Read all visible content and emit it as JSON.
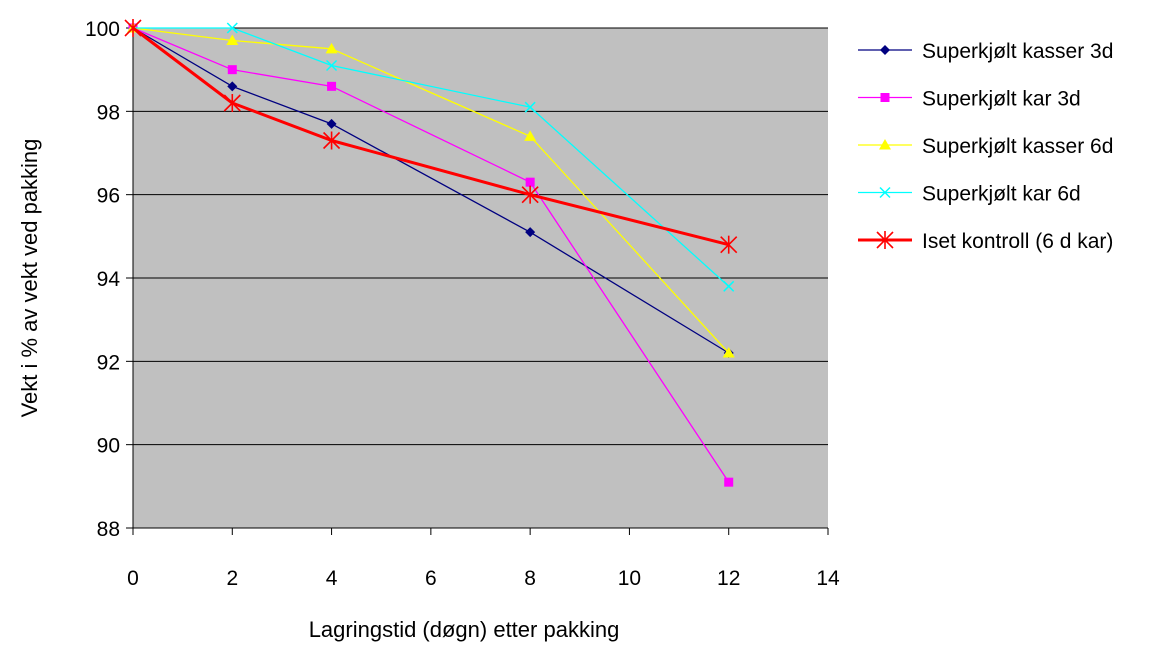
{
  "chart_data": {
    "type": "line",
    "title": "",
    "xlabel": "Lagringstid (døgn) etter pakking",
    "ylabel": "Vekt i % av vekt ved pakking",
    "xlim": [
      0,
      14
    ],
    "ylim": [
      88,
      100
    ],
    "xticks": [
      0,
      2,
      4,
      6,
      8,
      10,
      12,
      14
    ],
    "yticks": [
      88,
      90,
      92,
      94,
      96,
      98,
      100
    ],
    "grid": "horizontal",
    "plot_background": "#c0c0c0",
    "legend_position": "right",
    "series": [
      {
        "name": "Superkjølt kasser 3d",
        "color": "#000080",
        "marker": "diamond",
        "x": [
          0,
          2,
          4,
          8,
          12
        ],
        "values": [
          100,
          98.6,
          97.7,
          95.1,
          92.2
        ]
      },
      {
        "name": "Superkjølt kar 3d",
        "color": "#ff00ff",
        "marker": "square",
        "x": [
          0,
          2,
          4,
          8,
          12
        ],
        "values": [
          100,
          99.0,
          98.6,
          96.3,
          89.1
        ]
      },
      {
        "name": "Superkjølt kasser 6d",
        "color": "#ffff00",
        "marker": "triangle",
        "x": [
          0,
          2,
          4,
          8,
          12
        ],
        "values": [
          100,
          99.7,
          99.5,
          97.4,
          92.2
        ]
      },
      {
        "name": "Superkjølt kar 6d",
        "color": "#00ffff",
        "marker": "x",
        "x": [
          0,
          2,
          4,
          8,
          12
        ],
        "values": [
          100,
          100,
          99.1,
          98.1,
          93.8
        ]
      },
      {
        "name": "Iset kontroll (6 d kar)",
        "color": "#ff0000",
        "marker": "star",
        "x": [
          0,
          2,
          4,
          8,
          12
        ],
        "values": [
          100,
          98.2,
          97.3,
          96.0,
          94.8
        ]
      }
    ]
  }
}
